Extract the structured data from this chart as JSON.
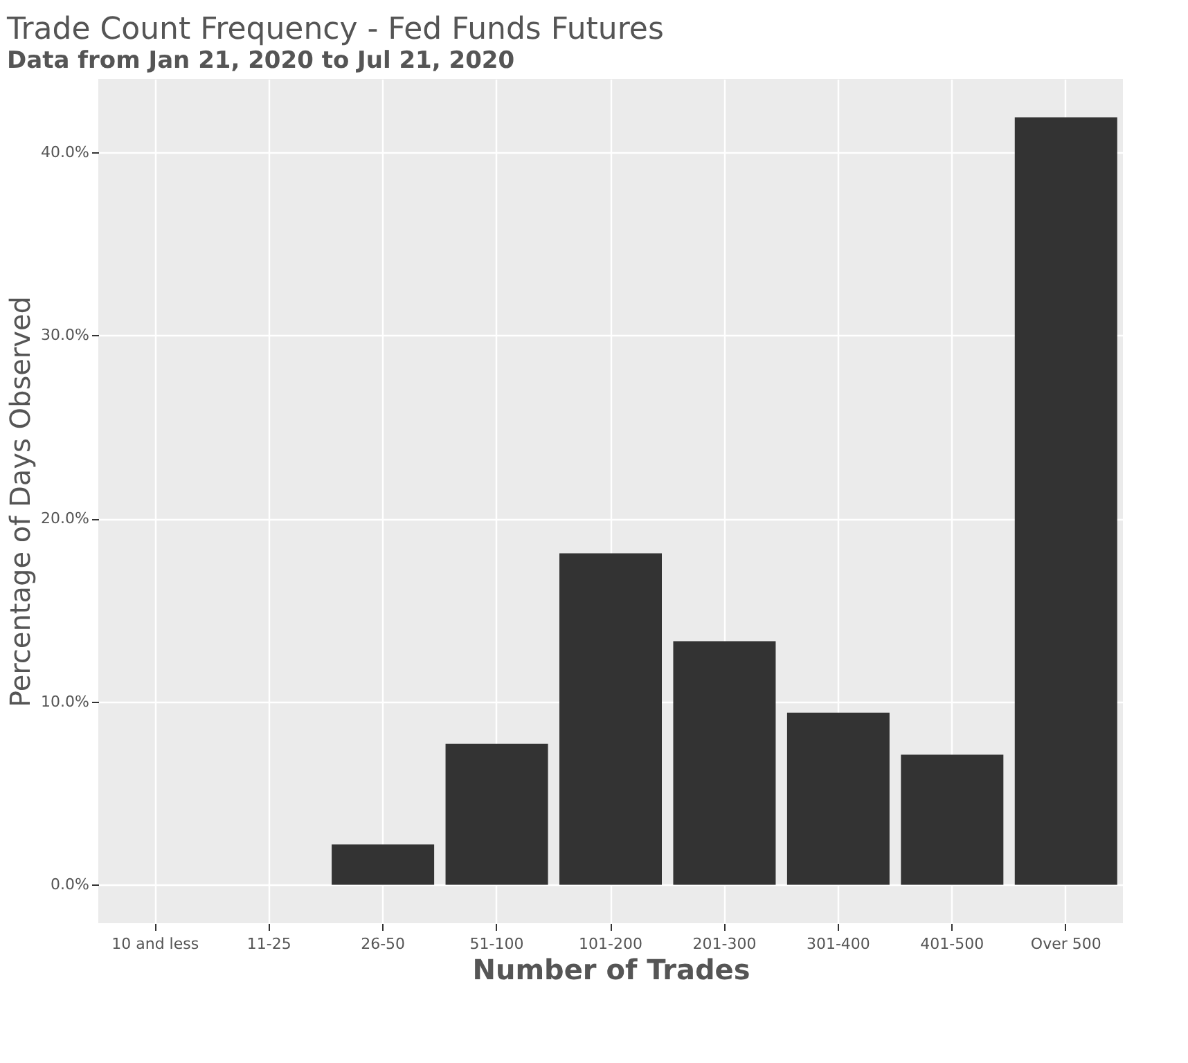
{
  "chart_data": {
    "type": "bar",
    "title": "Trade Count Frequency - Fed Funds Futures",
    "subtitle": "Data from Jan 21, 2020 to Jul 21, 2020",
    "xlabel": "Number of Trades",
    "ylabel": "Percentage of Days Observed",
    "categories": [
      "10 and less",
      "11-25",
      "26-50",
      "51-100",
      "101-200",
      "201-300",
      "301-400",
      "401-500",
      "Over 500"
    ],
    "values": [
      0,
      0,
      2.2,
      7.7,
      18.1,
      13.3,
      9.4,
      7.1,
      41.9
    ],
    "color": "#333333",
    "ylim": [
      -2.1,
      44
    ],
    "yticks": [
      {
        "value": 0,
        "label": "0.0%"
      },
      {
        "value": 10,
        "label": "10.0%"
      },
      {
        "value": 20,
        "label": "20.0%"
      },
      {
        "value": 30,
        "label": "30.0%"
      },
      {
        "value": 40,
        "label": "40.0%"
      }
    ],
    "grid": true
  }
}
